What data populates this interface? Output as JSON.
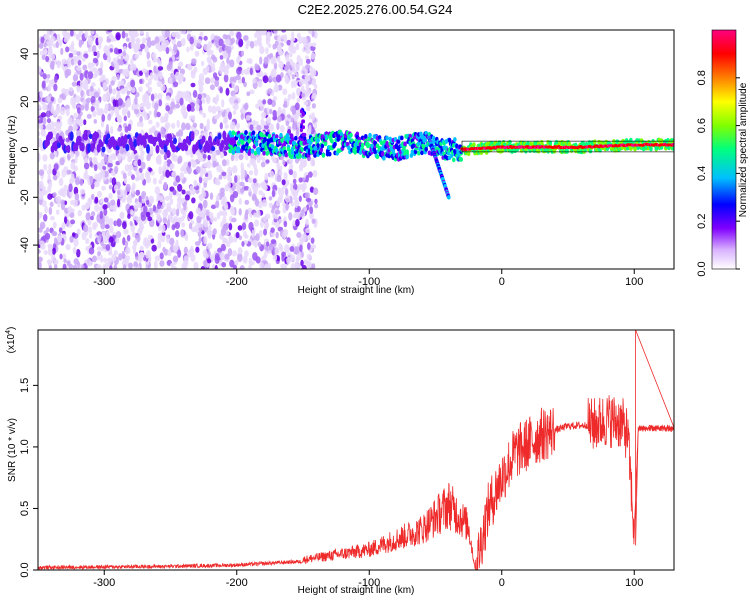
{
  "title": "C2E2.2025.276.00.54.G24",
  "chart_data": [
    {
      "type": "heatmap",
      "name": "spectrogram",
      "xlabel": "Height of straight line (km)",
      "ylabel": "Frequency (Hz)",
      "xlim": [
        -350,
        130
      ],
      "ylim": [
        -50,
        50
      ],
      "x_ticks": [
        -300,
        -200,
        -100,
        0,
        100
      ],
      "x_tick_labels": [
        "-300",
        "-200",
        "-100",
        "0",
        "100"
      ],
      "y_ticks": [
        -40,
        -20,
        0,
        20,
        40
      ],
      "y_tick_labels": [
        "-40",
        "-20",
        "0",
        "20",
        "40"
      ],
      "features": {
        "noise_region_x": [
          -350,
          -150
        ],
        "signal_trace": [
          {
            "x": -200,
            "y": 3
          },
          {
            "x": -150,
            "y": 1
          },
          {
            "x": -120,
            "y": 3
          },
          {
            "x": -80,
            "y": 0
          },
          {
            "x": -60,
            "y": 3
          },
          {
            "x": -40,
            "y": 0
          },
          {
            "x": -30,
            "y": 0
          },
          {
            "x": 0,
            "y": 1
          },
          {
            "x": 60,
            "y": 1
          },
          {
            "x": 100,
            "y": 2
          },
          {
            "x": 130,
            "y": 2
          }
        ],
        "downward_branch": [
          {
            "x": -55,
            "y": 5
          },
          {
            "x": -40,
            "y": -20
          }
        ]
      },
      "colorbar": {
        "label": "Normalized spectral amplitude",
        "range": [
          0,
          1
        ],
        "ticks": [
          0.0,
          0.2,
          0.4,
          0.6,
          0.8
        ],
        "tick_labels": [
          "0.0",
          "0.2",
          "0.4",
          "0.6",
          "0.8"
        ],
        "colors": [
          "#ffffff",
          "#d9b3ff",
          "#8000ff",
          "#0000ff",
          "#00bfff",
          "#00ff80",
          "#80ff00",
          "#ffff00",
          "#ff8000",
          "#ff0000",
          "#ff0080"
        ]
      }
    },
    {
      "type": "line",
      "name": "snr",
      "xlabel": "Height of straight line (km)",
      "ylabel": "SNR (10 * v/v)",
      "y_exponent": "(x10",
      "y_exponent_power": "4",
      "y_exponent_close": ")",
      "xlim": [
        -350,
        130
      ],
      "ylim": [
        0,
        1.95
      ],
      "x_ticks": [
        -300,
        -200,
        -100,
        0,
        100
      ],
      "x_tick_labels": [
        "-300",
        "-200",
        "-100",
        "0",
        "100"
      ],
      "y_ticks": [
        0.0,
        0.5,
        1.0,
        1.5
      ],
      "y_tick_labels": [
        "0.0",
        "0.5",
        "1.0",
        "1.5"
      ],
      "color": "#ee2a2a",
      "envelope": [
        {
          "x": -350,
          "y": 0.02
        },
        {
          "x": -250,
          "y": 0.03
        },
        {
          "x": -200,
          "y": 0.04
        },
        {
          "x": -150,
          "y": 0.07
        },
        {
          "x": -100,
          "y": 0.14
        },
        {
          "x": -60,
          "y": 0.28
        },
        {
          "x": -40,
          "y": 0.45
        },
        {
          "x": -25,
          "y": 0.3
        },
        {
          "x": -20,
          "y": 0.0
        },
        {
          "x": -15,
          "y": 0.25
        },
        {
          "x": -10,
          "y": 0.5
        },
        {
          "x": 0,
          "y": 0.75
        },
        {
          "x": 10,
          "y": 0.95
        },
        {
          "x": 30,
          "y": 1.1
        },
        {
          "x": 50,
          "y": 1.17
        },
        {
          "x": 70,
          "y": 1.18
        },
        {
          "x": 80,
          "y": 1.22
        },
        {
          "x": 90,
          "y": 1.2
        },
        {
          "x": 95,
          "y": 1.1
        },
        {
          "x": 100,
          "y": 0.3
        },
        {
          "x": 103,
          "y": 1.15
        },
        {
          "x": 130,
          "y": 1.15
        }
      ],
      "annotations": [
        {
          "x": 101,
          "y": 1.95,
          "note": "peak"
        },
        {
          "x": 101,
          "y": 0.2,
          "note": "dip"
        }
      ]
    }
  ]
}
